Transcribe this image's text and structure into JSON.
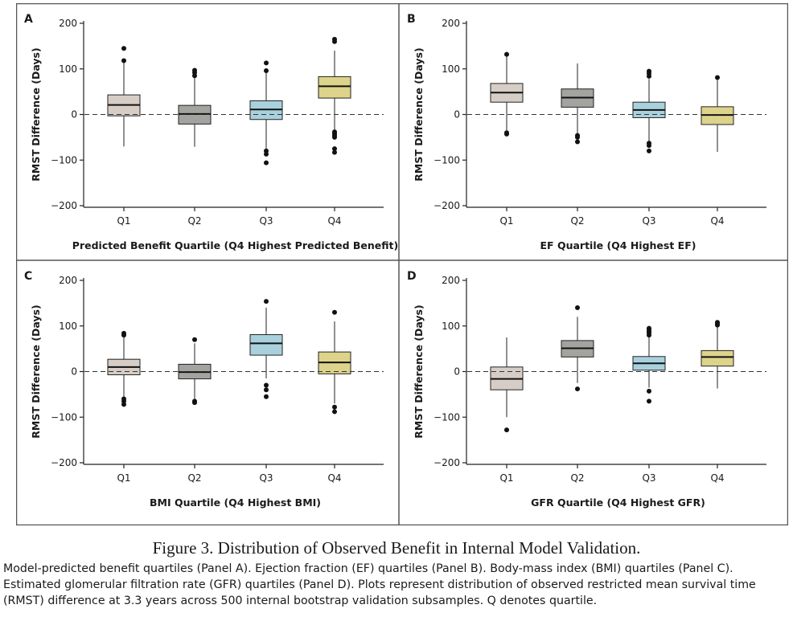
{
  "caption": {
    "title": "Figure 3. Distribution of Observed Benefit in Internal Model Validation.",
    "lines": [
      "Model-predicted benefit quartiles (Panel A). Ejection fraction (EF) quartiles (Panel B). Body-mass index (BMI) quartiles (Panel C).",
      "Estimated glomerular filtration rate (GFR) quartiles (Panel D). Plots represent distribution of observed restricted mean survival time",
      "(RMST) difference at 3.3 years across 500 internal bootstrap validation subsamples. Q denotes quartile."
    ]
  },
  "colors": {
    "Q1": "#d6cec6",
    "Q2": "#a3a3a0",
    "Q3": "#a8d1dd",
    "Q4": "#ddd38a",
    "frame": "#555555",
    "text": "#1a1a1a"
  },
  "chart_data": [
    {
      "type": "box",
      "panel": "A",
      "xlabel": "Predicted Benefit Quartile (Q4 Highest Predicted Benefit)",
      "ylabel": "RMST Difference (Days)",
      "ylim": [
        -200,
        200
      ],
      "yticks": [
        200,
        100,
        0,
        -100,
        -200
      ],
      "ytick_labels": [
        "200",
        "100",
        "0",
        "−100",
        "−200"
      ],
      "reference_line": 0,
      "categories": [
        "Q1",
        "Q2",
        "Q3",
        "Q4"
      ],
      "boxes": [
        {
          "whisker_low": -70,
          "q1": -3,
          "median": 21,
          "q3": 43,
          "whisker_high": 113,
          "outliers": [
            118,
            145
          ]
        },
        {
          "whisker_low": -71,
          "q1": -21,
          "median": 1,
          "q3": 20,
          "whisker_high": 82,
          "outliers": [
            85,
            92,
            97
          ]
        },
        {
          "whisker_low": -75,
          "q1": -11,
          "median": 11,
          "q3": 30,
          "whisker_high": 92,
          "outliers": [
            96,
            113,
            -80,
            -87,
            -106
          ]
        },
        {
          "whisker_low": -38,
          "q1": 36,
          "median": 62,
          "q3": 83,
          "whisker_high": 140,
          "outliers": [
            160,
            165,
            -38,
            -42,
            -46,
            -50,
            -75,
            -83
          ]
        }
      ]
    },
    {
      "type": "box",
      "panel": "B",
      "xlabel": "EF Quartile (Q4 Highest EF)",
      "ylabel": "RMST Difference (Days)",
      "ylim": [
        -200,
        200
      ],
      "yticks": [
        200,
        100,
        0,
        -100,
        -200
      ],
      "ytick_labels": [
        "200",
        "100",
        "0",
        "−100",
        "−200"
      ],
      "reference_line": 0,
      "categories": [
        "Q1",
        "Q2",
        "Q3",
        "Q4"
      ],
      "boxes": [
        {
          "whisker_low": -35,
          "q1": 27,
          "median": 48,
          "q3": 68,
          "whisker_high": 128,
          "outliers": [
            132,
            -40,
            -43
          ]
        },
        {
          "whisker_low": -42,
          "q1": 16,
          "median": 37,
          "q3": 56,
          "whisker_high": 112,
          "outliers": [
            -46,
            -50,
            -60
          ]
        },
        {
          "whisker_low": -60,
          "q1": -7,
          "median": 10,
          "q3": 27,
          "whisker_high": 78,
          "outliers": [
            84,
            90,
            95,
            -63,
            -68,
            -80
          ]
        },
        {
          "whisker_low": -82,
          "q1": -22,
          "median": -1,
          "q3": 17,
          "whisker_high": 78,
          "outliers": [
            81
          ]
        }
      ]
    },
    {
      "type": "box",
      "panel": "C",
      "xlabel": "BMI Quartile (Q4 Highest BMI)",
      "ylabel": "RMST Difference (Days)",
      "ylim": [
        -200,
        200
      ],
      "yticks": [
        200,
        100,
        0,
        -100,
        -200
      ],
      "ytick_labels": [
        "200",
        "100",
        "0",
        "−100",
        "−200"
      ],
      "reference_line": 0,
      "categories": [
        "Q1",
        "Q2",
        "Q3",
        "Q4"
      ],
      "boxes": [
        {
          "whisker_low": -55,
          "q1": -7,
          "median": 10,
          "q3": 27,
          "whisker_high": 75,
          "outliers": [
            80,
            84,
            -60,
            -65,
            -72
          ]
        },
        {
          "whisker_low": -62,
          "q1": -16,
          "median": -1,
          "q3": 16,
          "whisker_high": 62,
          "outliers": [
            70,
            -65,
            -68
          ]
        },
        {
          "whisker_low": -15,
          "q1": 36,
          "median": 62,
          "q3": 81,
          "whisker_high": 140,
          "outliers": [
            154,
            -30,
            -40,
            -55
          ]
        },
        {
          "whisker_low": -70,
          "q1": -5,
          "median": 20,
          "q3": 43,
          "whisker_high": 110,
          "outliers": [
            130,
            -78,
            -88
          ]
        }
      ]
    },
    {
      "type": "box",
      "panel": "D",
      "xlabel": "GFR Quartile (Q4 Highest GFR)",
      "ylabel": "RMST Difference (Days)",
      "ylim": [
        -200,
        200
      ],
      "yticks": [
        200,
        100,
        0,
        -100,
        -200
      ],
      "ytick_labels": [
        "200",
        "100",
        "0",
        "−100",
        "−200"
      ],
      "reference_line": 0,
      "categories": [
        "Q1",
        "Q2",
        "Q3",
        "Q4"
      ],
      "boxes": [
        {
          "whisker_low": -100,
          "q1": -40,
          "median": -16,
          "q3": 10,
          "whisker_high": 75,
          "outliers": [
            -128
          ]
        },
        {
          "whisker_low": -25,
          "q1": 32,
          "median": 51,
          "q3": 68,
          "whisker_high": 120,
          "outliers": [
            140,
            -38
          ]
        },
        {
          "whisker_low": -35,
          "q1": 3,
          "median": 18,
          "q3": 33,
          "whisker_high": 75,
          "outliers": [
            80,
            85,
            88,
            92,
            95,
            -43,
            -65
          ]
        },
        {
          "whisker_low": -37,
          "q1": 12,
          "median": 32,
          "q3": 46,
          "whisker_high": 98,
          "outliers": [
            102,
            105,
            108
          ]
        }
      ]
    }
  ]
}
